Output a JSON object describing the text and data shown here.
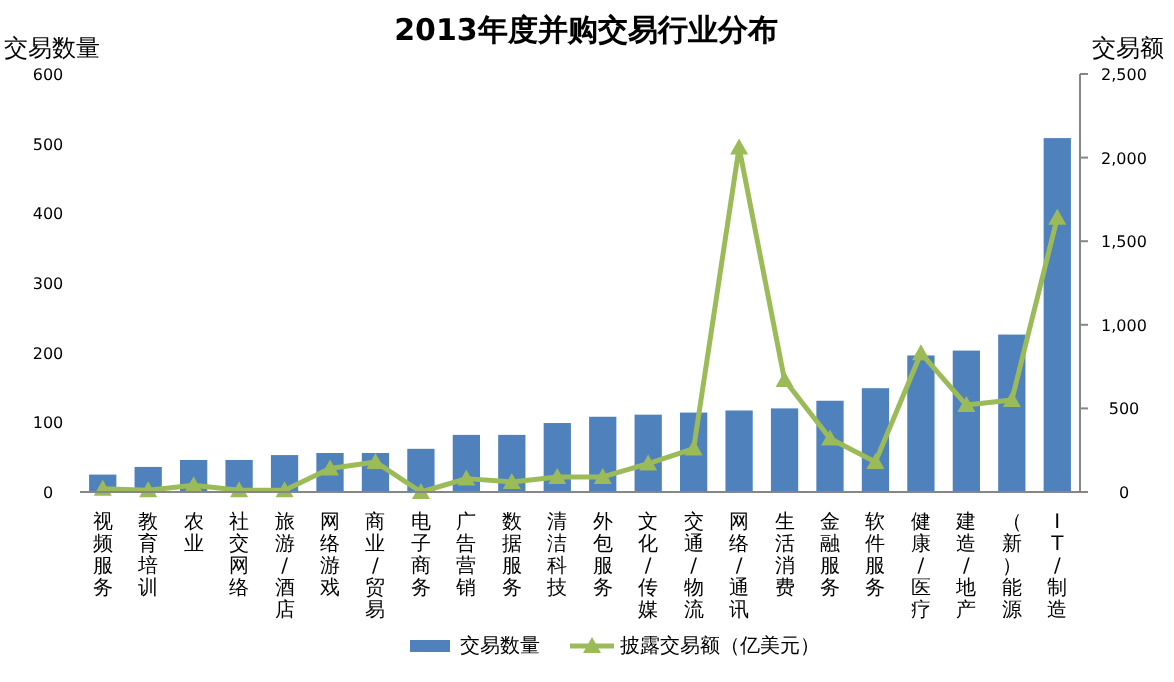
{
  "chart_data": {
    "type": "bar",
    "title": "2013年度并购交易行业分布",
    "ylabel": "交易数量",
    "y2label": "交易额",
    "categories": [
      "视频服务",
      "教育培训",
      "农业",
      "社交网络",
      "旅游/酒店",
      "网络游戏",
      "商业/贸易",
      "电子商务",
      "广告营销",
      "数据服务",
      "清洁科技",
      "外包服务",
      "文化/传媒",
      "交通/物流",
      "网络/通讯",
      "生活消费",
      "金融服务",
      "软件服务",
      "健康/医疗",
      "建造/地产",
      "（新）能源",
      "IT/制造"
    ],
    "series": [
      {
        "name": "交易数量",
        "color": "#4f81bd",
        "values": [
          25,
          36,
          46,
          46,
          53,
          56,
          56,
          62,
          82,
          82,
          99,
          108,
          111,
          114,
          117,
          120,
          131,
          149,
          196,
          203,
          226,
          508
        ]
      },
      {
        "name": "披露交易额（亿美元）",
        "type": "line",
        "axis": "y2",
        "color": "#9bbb59",
        "values": [
          20,
          10,
          40,
          10,
          10,
          140,
          180,
          0,
          80,
          60,
          90,
          90,
          170,
          260,
          2060,
          670,
          320,
          180,
          830,
          520,
          550,
          1640
        ]
      }
    ],
    "ylim": [
      0,
      600
    ],
    "yticks": [
      0,
      100,
      200,
      300,
      400,
      500,
      600
    ],
    "y2lim": [
      0,
      2500
    ],
    "y2ticks": [
      0,
      500,
      {
        "value": 1000,
        "label": "1,000"
      },
      {
        "value": 1500,
        "label": "1,500"
      },
      {
        "value": 2000,
        "label": "2,000"
      },
      {
        "value": 2500,
        "label": "2,500"
      }
    ],
    "marker": "triangle",
    "legend": "bottom",
    "grid": false
  }
}
